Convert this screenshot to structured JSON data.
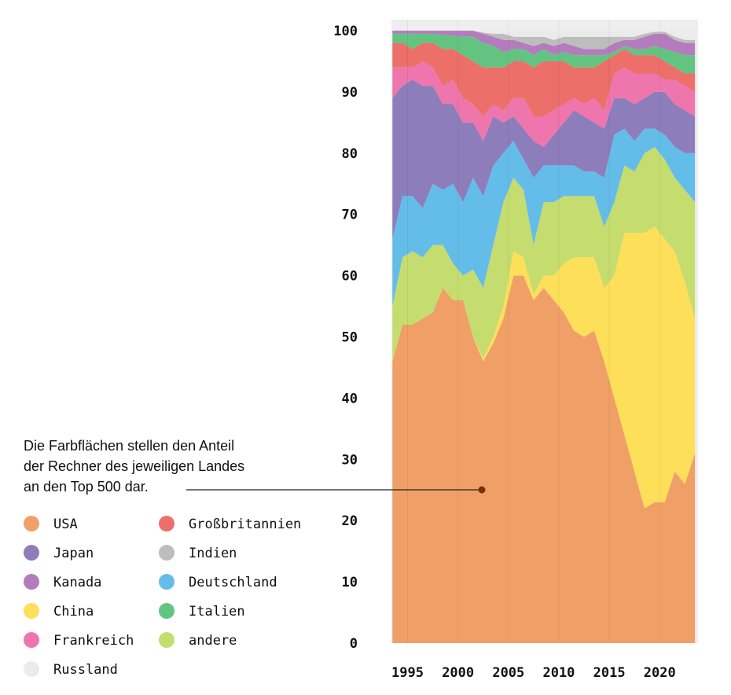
{
  "chart_data": {
    "type": "stacked_area",
    "annotation": [
      "Die Farbflächen stellen den Anteil",
      "der Rechner des jeweiligen Landes",
      "an den Top 500 dar."
    ],
    "x": [
      1993.5,
      1994.5,
      1995.5,
      1996.5,
      1997.5,
      1998.5,
      1999.5,
      2000.5,
      2001.5,
      2002.5,
      2003.5,
      2004.5,
      2005.5,
      2006.5,
      2007.5,
      2008.5,
      2009.5,
      2010.5,
      2011.5,
      2012.5,
      2013.5,
      2014.5,
      2015.5,
      2016.5,
      2017.5,
      2018.5,
      2019.5,
      2020.5,
      2021.5,
      2022.5,
      2023.5
    ],
    "xlim": [
      1993.4,
      2023.8
    ],
    "xticks": [
      1995,
      2000,
      2005,
      2010,
      2015,
      2020
    ],
    "ylim": [
      0,
      100
    ],
    "yticks": [
      0,
      10,
      20,
      30,
      40,
      50,
      60,
      70,
      80,
      90,
      100
    ],
    "series": [
      {
        "name": "USA",
        "color": "#f0a066",
        "values": [
          46,
          52,
          52,
          53,
          54,
          58,
          56,
          56,
          50,
          46,
          49,
          53,
          60,
          60,
          56,
          58,
          56,
          54,
          51,
          50,
          51,
          46,
          40,
          34,
          28,
          22,
          23,
          23,
          28,
          26,
          31
        ]
      },
      {
        "name": "Japan",
        "color": "#8e7dbb",
        "values": [
          23,
          18,
          19,
          20,
          16,
          14,
          13,
          13,
          9,
          9,
          8,
          5,
          4,
          5,
          6,
          3,
          5,
          7,
          9,
          9,
          8,
          8,
          6,
          5,
          6,
          5,
          6,
          7,
          7,
          7,
          6
        ]
      },
      {
        "name": "Kanada",
        "color": "#b57cbd",
        "values": [
          0.5,
          0.5,
          0.5,
          0.5,
          0.5,
          0.7,
          0.8,
          1,
          1,
          1.5,
          1.5,
          2,
          1.5,
          1,
          1.5,
          1,
          1.5,
          1.5,
          1.5,
          1,
          1,
          1,
          1.5,
          1,
          1.5,
          2,
          2,
          2.5,
          2,
          2,
          2
        ]
      },
      {
        "name": "China",
        "color": "#fddf5a",
        "values": [
          0,
          0,
          0,
          0,
          0,
          0,
          0,
          0,
          0,
          0.5,
          1,
          2,
          4,
          3,
          1,
          2,
          4,
          8,
          12,
          13,
          12,
          12,
          20,
          33,
          39,
          45,
          45,
          43,
          36,
          33,
          22
        ]
      },
      {
        "name": "Frankreich",
        "color": "#ef75ad",
        "values": [
          5,
          3,
          2,
          4,
          3,
          3,
          4,
          4,
          3,
          4,
          2,
          2,
          3,
          5,
          4,
          5,
          4,
          3,
          2,
          2,
          4,
          3,
          4,
          5,
          5,
          4,
          3,
          2,
          4,
          4,
          4
        ]
      },
      {
        "name": "Russland",
        "color": "#ebebeb",
        "values": [
          0,
          0,
          0,
          0,
          0,
          0,
          0,
          0,
          0,
          0.3,
          0.5,
          0.5,
          1,
          1,
          1,
          1,
          1.5,
          1,
          1,
          1,
          1,
          1,
          1,
          1,
          1,
          0.5,
          0.2,
          0.2,
          1,
          1.5,
          1.5
        ]
      },
      {
        "name": "Großbritannien",
        "color": "#ec6f6a",
        "values": [
          4,
          4,
          3,
          3,
          4,
          6,
          5,
          7,
          7,
          8,
          6,
          7,
          6,
          6,
          8,
          9,
          8,
          7,
          5,
          6,
          5,
          8,
          3,
          3,
          3,
          3,
          3,
          3,
          2,
          2,
          3
        ]
      },
      {
        "name": "Indien",
        "color": "#bdbdbd",
        "values": [
          0,
          0,
          0,
          0,
          0,
          0,
          0,
          0,
          0,
          0.2,
          0.5,
          1,
          0.5,
          1,
          1.5,
          1,
          1,
          1,
          1.5,
          2,
          2,
          2,
          1,
          0.5,
          0.5,
          0.5,
          0.3,
          0.3,
          0.5,
          0.5,
          0.5
        ]
      },
      {
        "name": "Deutschland",
        "color": "#64bde8",
        "values": [
          11,
          10,
          9,
          8,
          10,
          9,
          13,
          12,
          15,
          15,
          13,
          8,
          6,
          5,
          11,
          6,
          6,
          5,
          5,
          4,
          4,
          8,
          11,
          6,
          5,
          4,
          3,
          4,
          5,
          6,
          8
        ]
      },
      {
        "name": "Italien",
        "color": "#62c480",
        "values": [
          1.5,
          1.5,
          2.5,
          1.5,
          1.5,
          2.3,
          2.2,
          3,
          4,
          4,
          3.5,
          2.5,
          2,
          2,
          2,
          2,
          1,
          1.5,
          2,
          2,
          2,
          1,
          0.5,
          0.5,
          1,
          1,
          1.5,
          2,
          2.5,
          3,
          3
        ]
      },
      {
        "name": "andere",
        "color": "#c5dc6e",
        "values": [
          9,
          11,
          12,
          10,
          11,
          7,
          6,
          4,
          11,
          11.5,
          15,
          17,
          12,
          11,
          8,
          12,
          12,
          11,
          10,
          10,
          10,
          10,
          12,
          11,
          10,
          13,
          13,
          13,
          12,
          15,
          19
        ]
      }
    ]
  }
}
